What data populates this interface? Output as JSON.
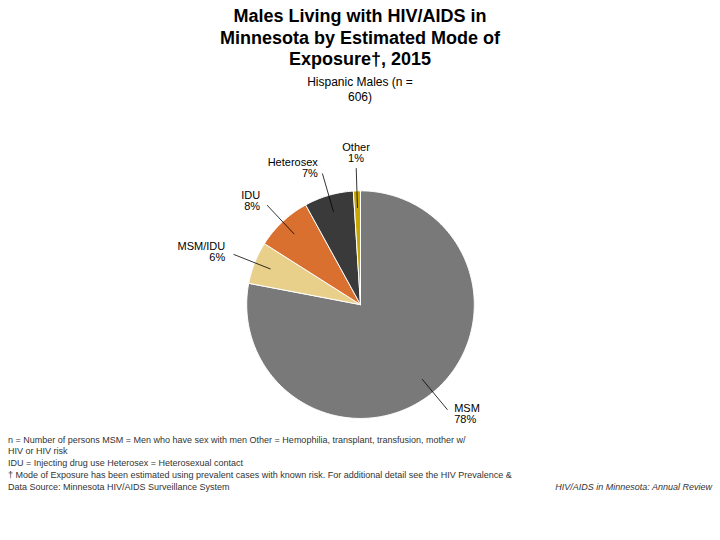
{
  "chart_data": {
    "type": "pie",
    "title": "Males Living with HIV/AIDS in\nMinnesota by Estimated Mode of\nExposure†, 2015",
    "subtitle": "Hispanic Males (n =\n606)",
    "categories": [
      "MSM",
      "MSM/IDU",
      "IDU",
      "Heterosex",
      "Other"
    ],
    "values": [
      78,
      6,
      8,
      7,
      1
    ],
    "value_labels": [
      "78%",
      "6%",
      "8%",
      "7%",
      "1%"
    ],
    "data_labels": true,
    "colors": [
      "#797979",
      "#e8d08a",
      "#d97030",
      "#3a3a3a",
      "#c8a800"
    ],
    "annotations": [
      "n = Number of persons          MSM = Men who have sex with men    Other = Hemophilia, transplant, transfusion, mother w/",
      "HIV or HIV risk",
      "IDU = Injecting drug use          Heterosex = Heterosexual contact",
      "† Mode of Exposure has been estimated using prevalent cases with known risk. For additional detail see the HIV Prevalence &",
      "Data Source: Minnesota HIV/AIDS Surveillance System",
      "HIV/AIDS in Minnesota: Annual Review"
    ]
  }
}
